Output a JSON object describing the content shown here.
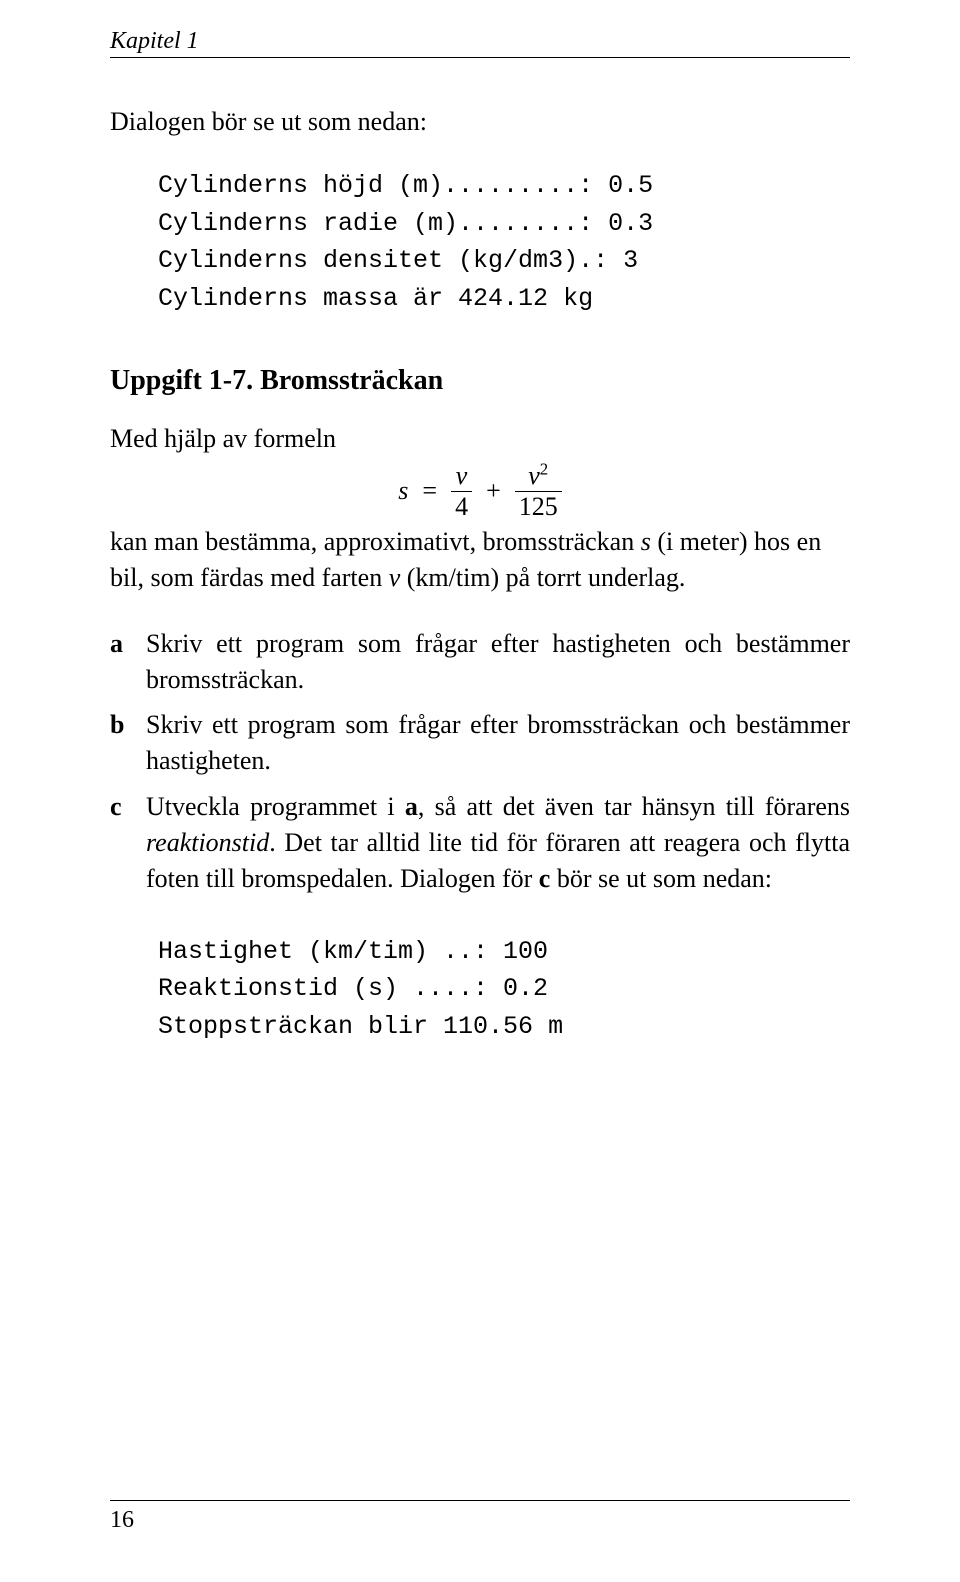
{
  "running_head": "Kapitel 1",
  "intro_text": "Dialogen bör se ut som nedan:",
  "dialog1": {
    "line1": "Cylinderns höjd (m).........: 0.5",
    "line2": "Cylinderns radie (m)........: 0.3",
    "line3": "Cylinderns densitet (kg/dm3).: 3",
    "line4": "Cylinderns massa är 424.12 kg"
  },
  "exercise_label": "Uppgift 1-7.",
  "exercise_title": "Bromssträckan",
  "formula_lead": "Med hjälp av formeln",
  "formula": {
    "lhs": "s",
    "eq": "=",
    "frac1_num": "v",
    "frac1_den": "4",
    "plus": "+",
    "frac2_num_base": "v",
    "frac2_num_exp": "2",
    "frac2_den": "125"
  },
  "formula_tail_1": "kan man bestämma, approximativt, bromssträckan ",
  "formula_tail_s": "s",
  "formula_tail_2": " (i meter) hos en bil, som färdas med farten ",
  "formula_tail_v": "v",
  "formula_tail_3": " (km/tim) på torrt underlag.",
  "items": {
    "a": {
      "label": "a",
      "text": "Skriv ett program som frågar efter hastigheten och bestämmer bromssträckan."
    },
    "b": {
      "label": "b",
      "text": "Skriv ett program som frågar efter bromssträckan och bestämmer hastigheten."
    },
    "c": {
      "label": "c",
      "pre": "Utveckla programmet i ",
      "bold_a": "a",
      "mid1": ", så att det även tar hänsyn till förarens ",
      "italic_word": "reaktionstid",
      "mid2": ". Det tar alltid lite tid för föraren att reagera och flytta foten till bromspedalen. Dialogen för ",
      "bold_c": "c",
      "post": " bör se ut som nedan:"
    }
  },
  "dialog2": {
    "line1": "Hastighet (km/tim) ..: 100",
    "line2": "Reaktionstid (s) ....: 0.2",
    "line3": "Stoppsträckan blir 110.56 m"
  },
  "page_number": "16"
}
